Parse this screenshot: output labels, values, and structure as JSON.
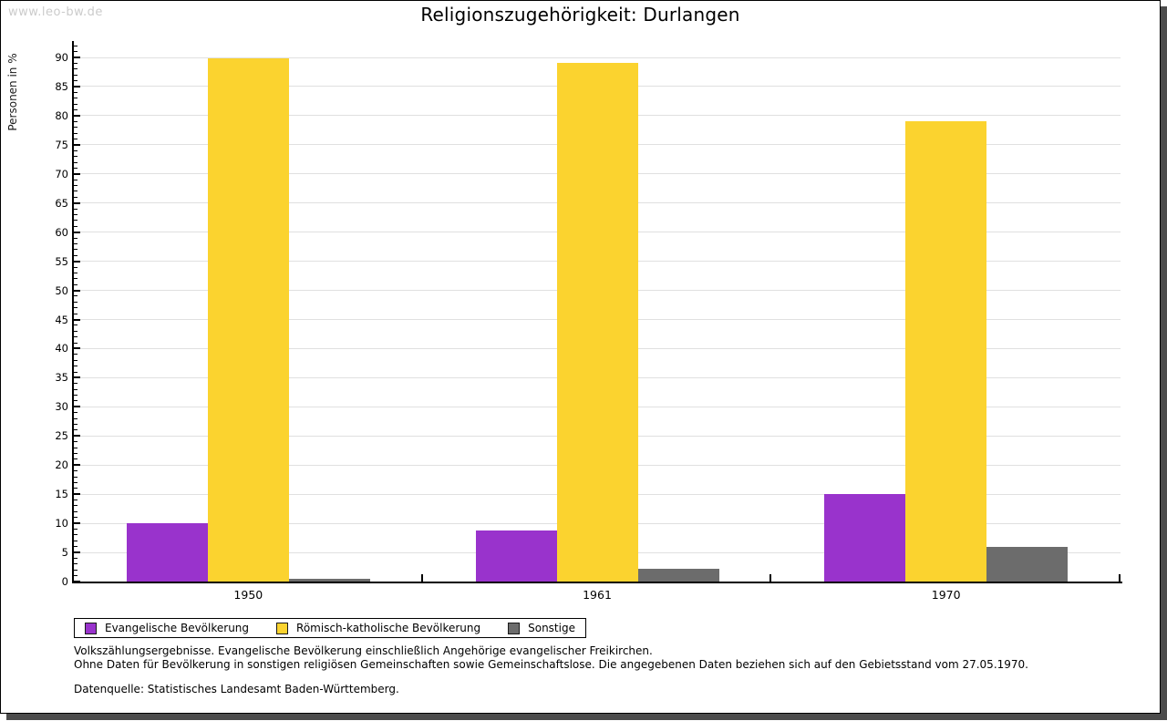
{
  "watermark": "www.leo-bw.de",
  "title": "Religionszugehörigkeit: Durlangen",
  "chart_data": {
    "type": "bar",
    "title": "Religionszugehörigkeit: Durlangen",
    "xlabel": "",
    "ylabel": "Personen in %",
    "categories": [
      "1950",
      "1961",
      "1970"
    ],
    "series": [
      {
        "name": "Evangelische Bevölkerung",
        "color": "#9933cc",
        "values": [
          10.0,
          8.8,
          15.0
        ]
      },
      {
        "name": "Römisch-katholische Bevölkerung",
        "color": "#fbd32f",
        "values": [
          89.8,
          89.0,
          79.0
        ]
      },
      {
        "name": "Sonstige",
        "color": "#6c6c6c",
        "values": [
          0.4,
          2.2,
          6.0
        ]
      }
    ],
    "ylim": [
      0,
      90
    ],
    "y_major_step": 5,
    "y_minor_step": 1,
    "grid": true,
    "legend_position": "bottom-left"
  },
  "colors": {
    "grid": "#e0e0e0",
    "axis": "#000000",
    "watermark": "#cbcbcb",
    "frame_shadow": "#4c4c4c"
  },
  "notes": {
    "line1": "Volkszählungsergebnisse. Evangelische Bevölkerung einschließlich Angehörige evangelischer Freikirchen.",
    "line2": "Ohne Daten für Bevölkerung in sonstigen religiösen Gemeinschaften sowie Gemeinschaftslose. Die angegebenen Daten beziehen sich auf den Gebietsstand vom 27.05.1970.",
    "source": "Datenquelle: Statistisches Landesamt Baden-Württemberg."
  }
}
